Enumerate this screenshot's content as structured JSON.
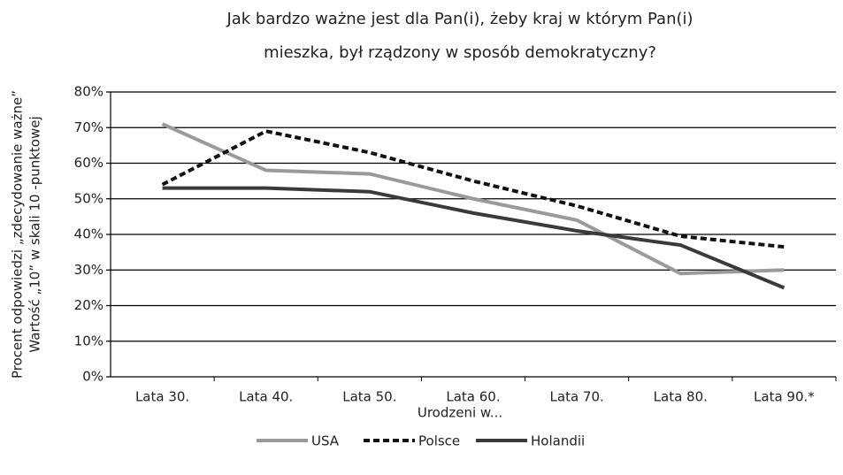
{
  "chart_data": {
    "type": "line",
    "title": [
      "Jak bardzo ważne jest dla Pan(i), żeby kraj w którym Pan(i)",
      "mieszka, był rządzony w sposób demokratyczny?"
    ],
    "y_label": [
      "Procent odpowiedzi „zdecydowanie ważne”",
      "Wartość „10” w skali 10 -punktowej"
    ],
    "x_label": "Urodzeni w...",
    "categories": [
      "Lata 30.",
      "Lata 40.",
      "Lata 50.",
      "Lata 60.",
      "Lata 70.",
      "Lata 80.",
      "Lata 90.*"
    ],
    "series": [
      {
        "name": "USA",
        "color": "#9a9a9a",
        "line_style": "solid",
        "values": [
          71,
          58,
          57,
          50,
          44,
          29,
          30
        ]
      },
      {
        "name": "Polsce",
        "color": "#111111",
        "line_style": "dashed",
        "values": [
          54,
          69,
          63,
          55,
          48,
          39.5,
          36.5
        ]
      },
      {
        "name": "Holandii",
        "color": "#3a3a3a",
        "line_style": "solid",
        "values": [
          53,
          53,
          52,
          46,
          41,
          37,
          25
        ]
      }
    ],
    "ylim": [
      0,
      80
    ],
    "yticks": [
      {
        "value": 0,
        "label": "0%"
      },
      {
        "value": 10,
        "label": "10%"
      },
      {
        "value": 20,
        "label": "20%"
      },
      {
        "value": 30,
        "label": "30%"
      },
      {
        "value": 40,
        "label": "40%"
      },
      {
        "value": 50,
        "label": "50%"
      },
      {
        "value": 60,
        "label": "60%"
      },
      {
        "value": 70,
        "label": "70%"
      },
      {
        "value": 80,
        "label": "80%"
      }
    ],
    "grid": true,
    "legend": "bottom"
  }
}
